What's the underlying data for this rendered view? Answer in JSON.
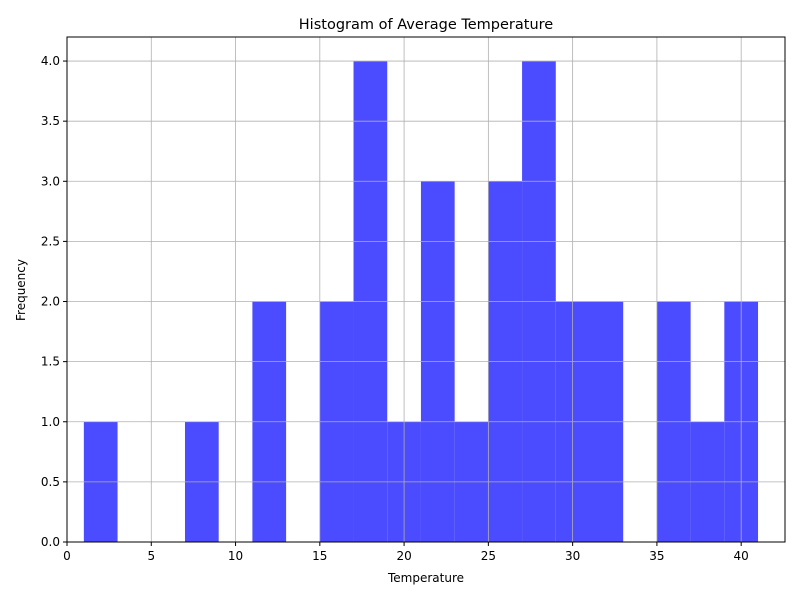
{
  "chart_data": {
    "type": "bar",
    "title": "Histogram of Average Temperature",
    "xlabel": "Temperature",
    "ylabel": "Frequency",
    "bin_width": 2,
    "bins": [
      {
        "x0": 1,
        "x1": 3,
        "count": 1
      },
      {
        "x0": 7,
        "x1": 9,
        "count": 1
      },
      {
        "x0": 11,
        "x1": 13,
        "count": 2
      },
      {
        "x0": 15,
        "x1": 17,
        "count": 2
      },
      {
        "x0": 17,
        "x1": 19,
        "count": 4
      },
      {
        "x0": 19,
        "x1": 21,
        "count": 1
      },
      {
        "x0": 21,
        "x1": 23,
        "count": 3
      },
      {
        "x0": 23,
        "x1": 25,
        "count": 1
      },
      {
        "x0": 25,
        "x1": 27,
        "count": 3
      },
      {
        "x0": 27,
        "x1": 29,
        "count": 4
      },
      {
        "x0": 29,
        "x1": 31,
        "count": 2
      },
      {
        "x0": 31,
        "x1": 33,
        "count": 2
      },
      {
        "x0": 35,
        "x1": 37,
        "count": 2
      },
      {
        "x0": 37,
        "x1": 39,
        "count": 1
      },
      {
        "x0": 39,
        "x1": 41,
        "count": 2
      }
    ],
    "xlim": [
      0,
      42.6
    ],
    "ylim": [
      0,
      4.2
    ],
    "xticks": [
      0,
      5,
      10,
      15,
      20,
      25,
      30,
      35,
      40
    ],
    "yticks": [
      0.0,
      0.5,
      1.0,
      1.5,
      2.0,
      2.5,
      3.0,
      3.5,
      4.0
    ],
    "xtick_labels": [
      "0",
      "5",
      "10",
      "15",
      "20",
      "25",
      "30",
      "35",
      "40"
    ],
    "ytick_labels": [
      "0.0",
      "0.5",
      "1.0",
      "1.5",
      "2.0",
      "2.5",
      "3.0",
      "3.5",
      "4.0"
    ],
    "grid": true,
    "bar_color": "#4b4bff",
    "grid_color": "#b0b0b0"
  }
}
